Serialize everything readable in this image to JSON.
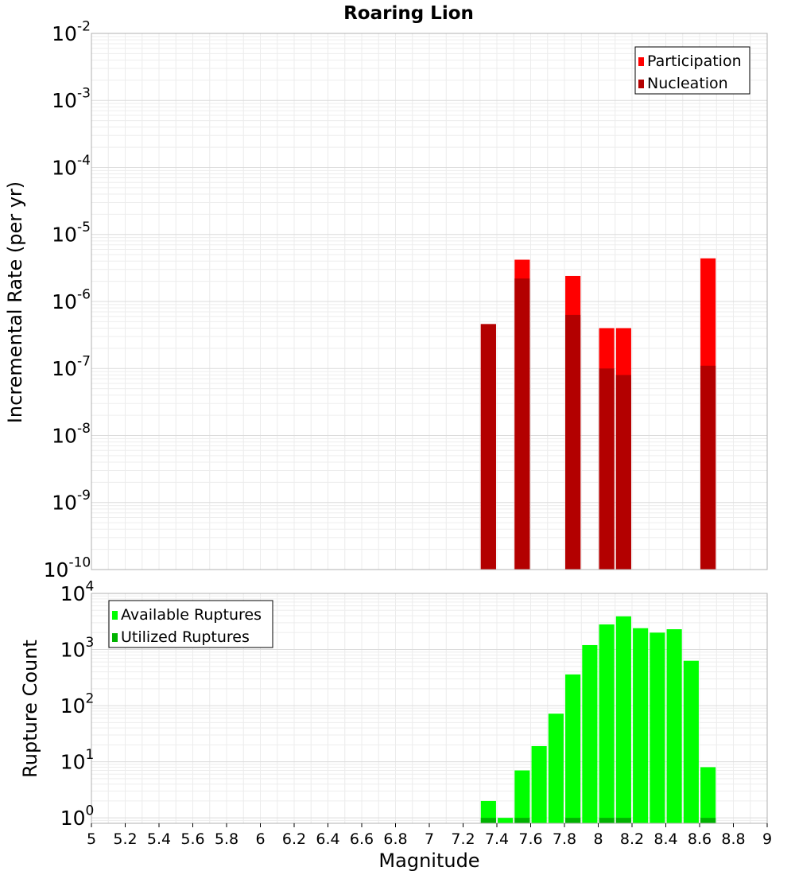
{
  "chart_data": [
    {
      "type": "bar",
      "title": "Roaring Lion",
      "ylabel": "Incremental Rate (per yr)",
      "xlabel": "",
      "xlim": [
        5,
        9
      ],
      "ylim": [
        1e-10,
        0.01
      ],
      "yscale": "log",
      "grid": true,
      "legend_position": "top-right",
      "bar_width": 0.09,
      "y_ticks": [
        {
          "base": "10",
          "exp": "-10"
        },
        {
          "base": "10",
          "exp": "-9"
        },
        {
          "base": "10",
          "exp": "-8"
        },
        {
          "base": "10",
          "exp": "-7"
        },
        {
          "base": "10",
          "exp": "-6"
        },
        {
          "base": "10",
          "exp": "-5"
        },
        {
          "base": "10",
          "exp": "-4"
        },
        {
          "base": "10",
          "exp": "-3"
        },
        {
          "base": "10",
          "exp": "-2"
        }
      ],
      "series": [
        {
          "name": "Participation",
          "color": "#ff0000",
          "x": [
            7.35,
            7.55,
            7.85,
            8.05,
            8.15,
            8.65
          ],
          "values": [
            4.6e-07,
            4.2e-06,
            2.4e-06,
            4e-07,
            4e-07,
            4.4e-06
          ]
        },
        {
          "name": "Nucleation",
          "color": "#b30000",
          "x": [
            7.35,
            7.55,
            7.85,
            8.05,
            8.15,
            8.65
          ],
          "values": [
            4.6e-07,
            2.2e-06,
            6.3e-07,
            1e-07,
            8e-08,
            1.1e-07
          ]
        }
      ]
    },
    {
      "type": "bar",
      "title": "",
      "ylabel": "Rupture Count",
      "xlabel": "Magnitude",
      "xlim": [
        5,
        9
      ],
      "ylim": [
        0.8,
        10000
      ],
      "yscale": "log",
      "grid": true,
      "legend_position": "top-left",
      "bar_width": 0.09,
      "x_ticks": [
        "5",
        "5.2",
        "5.4",
        "5.6",
        "5.8",
        "6",
        "6.2",
        "6.4",
        "6.6",
        "6.8",
        "7",
        "7.2",
        "7.4",
        "7.6",
        "7.8",
        "8",
        "8.2",
        "8.4",
        "8.6",
        "8.8",
        "9"
      ],
      "y_ticks": [
        {
          "base": "10",
          "exp": "0"
        },
        {
          "base": "10",
          "exp": "1"
        },
        {
          "base": "10",
          "exp": "2"
        },
        {
          "base": "10",
          "exp": "3"
        },
        {
          "base": "10",
          "exp": "4"
        }
      ],
      "series": [
        {
          "name": "Available Ruptures",
          "color": "#00ff00",
          "x": [
            7.35,
            7.45,
            7.55,
            7.65,
            7.75,
            7.85,
            7.95,
            8.05,
            8.15,
            8.25,
            8.35,
            8.45,
            8.55,
            8.65
          ],
          "values": [
            2,
            1,
            7,
            19,
            72,
            360,
            1200,
            2800,
            3900,
            2400,
            2000,
            2300,
            630,
            8
          ]
        },
        {
          "name": "Utilized Ruptures",
          "color": "#00b300",
          "x": [
            7.35,
            7.55,
            7.85,
            8.05,
            8.15,
            8.65
          ],
          "values": [
            1,
            1,
            1,
            1,
            1,
            1
          ]
        }
      ]
    }
  ]
}
